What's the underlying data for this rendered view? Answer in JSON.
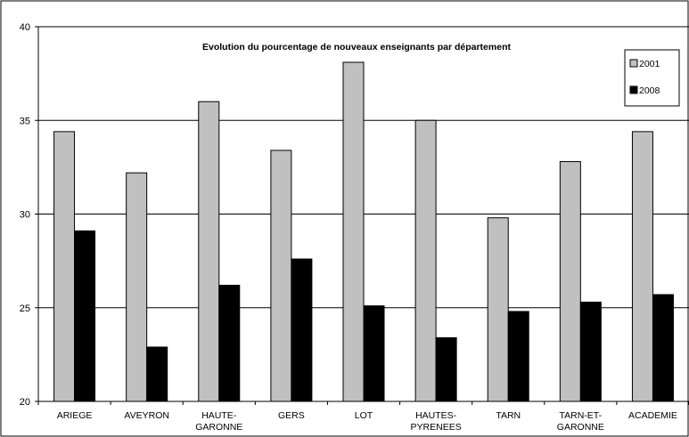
{
  "chart_data": {
    "type": "bar",
    "title": "Evolution du pourcentage de nouveaux enseignants par département",
    "categories": [
      [
        "ARIEGE"
      ],
      [
        "AVEYRON"
      ],
      [
        "HAUTE-",
        "GARONNE"
      ],
      [
        "GERS"
      ],
      [
        "LOT"
      ],
      [
        "HAUTES-",
        "PYRENEES"
      ],
      [
        "TARN"
      ],
      [
        "TARN-ET-",
        "GARONNE"
      ],
      [
        "ACADEMIE"
      ]
    ],
    "series": [
      {
        "name": "2001",
        "color": "#c0c0c0",
        "values": [
          34.4,
          32.2,
          36.0,
          33.4,
          38.1,
          35.0,
          29.8,
          32.8,
          34.4
        ]
      },
      {
        "name": "2008",
        "color": "#000000",
        "values": [
          29.1,
          22.9,
          26.2,
          27.6,
          25.1,
          23.4,
          24.8,
          25.3,
          25.7
        ]
      }
    ],
    "ylim": [
      20,
      40
    ],
    "yticks": [
      20,
      25,
      30,
      35,
      40
    ],
    "grid": true,
    "legend_position": "top-right"
  }
}
